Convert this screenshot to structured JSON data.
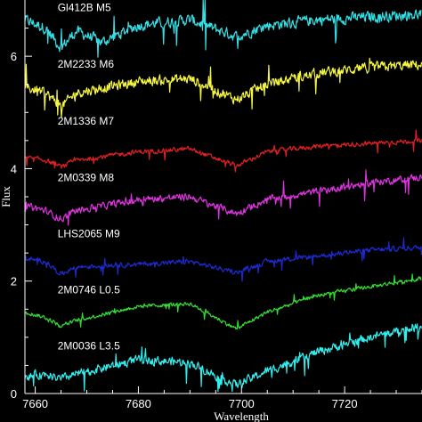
{
  "chart_data": {
    "type": "line",
    "xlabel": "Wavelength",
    "ylabel": "Flux",
    "xlim": [
      7658,
      7735
    ],
    "ylim": [
      0,
      7.0
    ],
    "x_ticks": [
      7660,
      7680,
      7700,
      7720
    ],
    "y_ticks": [
      0,
      2,
      4,
      6
    ],
    "grid": false,
    "legend": "inline labels",
    "background": "#000000",
    "feature_wavelengths": [
      7665,
      7699
    ],
    "series": [
      {
        "label": "Gl412B M5",
        "color": "#33e0e6",
        "offset": 6.45,
        "label_x": 7659.5,
        "label_y": 6.8,
        "shape": [
          [
            7658,
            0.2
          ],
          [
            7662,
            0.05
          ],
          [
            7665,
            -0.3
          ],
          [
            7668,
            0.0
          ],
          [
            7673,
            -0.2
          ],
          [
            7680,
            0.1
          ],
          [
            7690,
            0.2
          ],
          [
            7699,
            -0.1
          ],
          [
            7705,
            0.1
          ],
          [
            7715,
            0.2
          ],
          [
            7725,
            0.25
          ],
          [
            7735,
            0.3
          ]
        ],
        "noise": 0.14
      },
      {
        "label": "2M2233 M6",
        "color": "#f5f542",
        "offset": 5.55,
        "label_x": 7659.5,
        "label_y": 5.8,
        "shape": [
          [
            7658,
            -0.1
          ],
          [
            7662,
            -0.2
          ],
          [
            7665,
            -0.45
          ],
          [
            7668,
            -0.2
          ],
          [
            7680,
            0.0
          ],
          [
            7690,
            0.05
          ],
          [
            7699,
            -0.32
          ],
          [
            7705,
            -0.05
          ],
          [
            7715,
            0.15
          ],
          [
            7725,
            0.25
          ],
          [
            7735,
            0.3
          ]
        ],
        "noise": 0.13
      },
      {
        "label": "2M1336 M7",
        "color": "#e02020",
        "offset": 4.25,
        "label_x": 7659.5,
        "label_y": 4.78,
        "shape": [
          [
            7658,
            -0.05
          ],
          [
            7662,
            -0.1
          ],
          [
            7665,
            -0.22
          ],
          [
            7668,
            -0.1
          ],
          [
            7680,
            0.05
          ],
          [
            7690,
            0.1
          ],
          [
            7699,
            -0.2
          ],
          [
            7705,
            0.05
          ],
          [
            7715,
            0.15
          ],
          [
            7725,
            0.2
          ],
          [
            7735,
            0.25
          ]
        ],
        "noise": 0.06
      },
      {
        "label": "2M0339 M8",
        "color": "#dd33dd",
        "offset": 3.35,
        "label_x": 7659.5,
        "label_y": 3.78,
        "shape": [
          [
            7658,
            0.0
          ],
          [
            7662,
            -0.1
          ],
          [
            7665,
            -0.25
          ],
          [
            7668,
            -0.1
          ],
          [
            7680,
            0.1
          ],
          [
            7690,
            0.15
          ],
          [
            7699,
            -0.15
          ],
          [
            7705,
            0.1
          ],
          [
            7715,
            0.25
          ],
          [
            7725,
            0.4
          ],
          [
            7735,
            0.5
          ]
        ],
        "noise": 0.09
      },
      {
        "label": "LHS2065 M9",
        "color": "#1c2ad0",
        "offset": 2.3,
        "label_x": 7659.5,
        "label_y": 2.78,
        "shape": [
          [
            7658,
            0.1
          ],
          [
            7662,
            0.05
          ],
          [
            7665,
            -0.18
          ],
          [
            7668,
            -0.05
          ],
          [
            7680,
            0.0
          ],
          [
            7690,
            0.05
          ],
          [
            7699,
            -0.15
          ],
          [
            7705,
            0.05
          ],
          [
            7715,
            0.15
          ],
          [
            7725,
            0.25
          ],
          [
            7735,
            0.3
          ]
        ],
        "noise": 0.06
      },
      {
        "label": "2M0746 L0.5",
        "color": "#33dd33",
        "offset": 1.3,
        "label_x": 7659.5,
        "label_y": 1.78,
        "shape": [
          [
            7658,
            0.15
          ],
          [
            7662,
            0.05
          ],
          [
            7665,
            -0.1
          ],
          [
            7668,
            0.0
          ],
          [
            7680,
            0.25
          ],
          [
            7690,
            0.3
          ],
          [
            7699,
            -0.15
          ],
          [
            7705,
            0.15
          ],
          [
            7715,
            0.45
          ],
          [
            7725,
            0.6
          ],
          [
            7735,
            0.75
          ]
        ],
        "noise": 0.05
      },
      {
        "label": "2M0036 L3.5",
        "color": "#33eeee",
        "offset": 0.25,
        "label_x": 7659.5,
        "label_y": 0.78,
        "shape": [
          [
            7658,
            0.05
          ],
          [
            7662,
            0.1
          ],
          [
            7665,
            0.0
          ],
          [
            7668,
            0.1
          ],
          [
            7680,
            0.35
          ],
          [
            7690,
            0.3
          ],
          [
            7699,
            -0.1
          ],
          [
            7705,
            0.15
          ],
          [
            7715,
            0.5
          ],
          [
            7725,
            0.75
          ],
          [
            7735,
            0.95
          ]
        ],
        "noise": 0.11
      }
    ]
  }
}
